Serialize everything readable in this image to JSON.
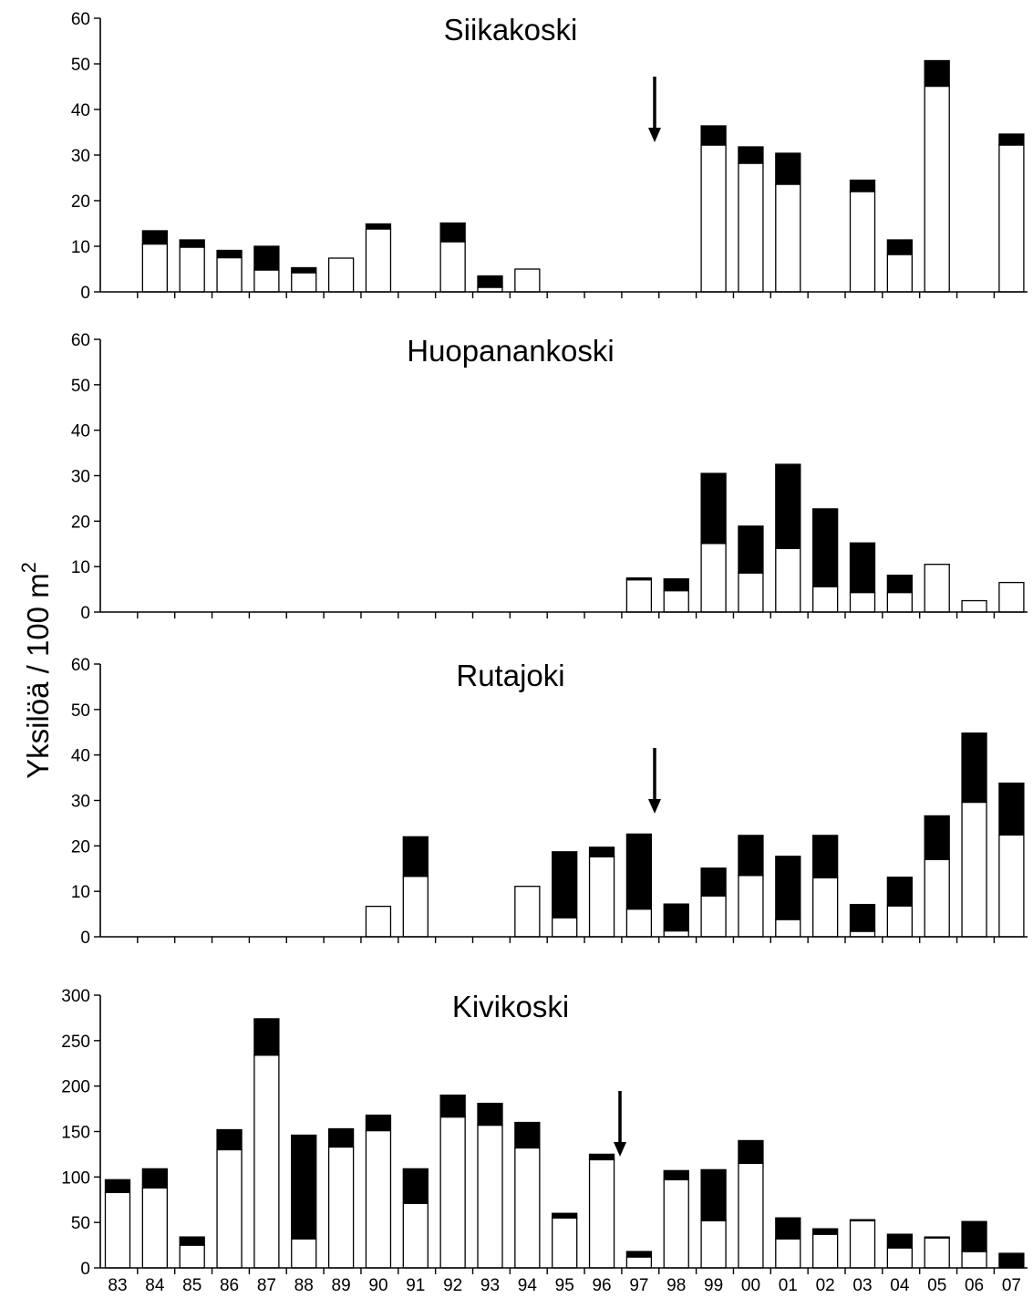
{
  "y_axis_title": "Yksilöä / 100 m",
  "y_axis_title_superscript": "2",
  "colors": {
    "lower_segment": "#ffffff",
    "upper_segment": "#000000",
    "axis": "#000000"
  },
  "chart_data": [
    {
      "type": "bar",
      "stacked": true,
      "title": "Siikakoski",
      "categories": [
        "83",
        "84",
        "85",
        "86",
        "87",
        "88",
        "89",
        "90",
        "91",
        "92",
        "93",
        "94",
        "95",
        "96",
        "97",
        "98",
        "99",
        "00",
        "01",
        "02",
        "03",
        "04",
        "05",
        "06",
        "07"
      ],
      "ylim": [
        0,
        60
      ],
      "yticks": [
        0,
        10,
        20,
        30,
        40,
        50,
        60
      ],
      "show_xtick_labels": false,
      "series": [
        {
          "values": [
            null,
            10.5,
            9.8,
            7.5,
            4.8,
            4.2,
            7.4,
            13.8,
            null,
            11,
            1,
            5,
            null,
            null,
            null,
            null,
            32.2,
            28.2,
            23.6,
            null,
            22,
            8.2,
            45.1,
            null,
            32.2
          ]
        },
        {
          "values": [
            null,
            2.9,
            1.6,
            1.6,
            5.2,
            1.1,
            0,
            1.1,
            null,
            4.1,
            2.5,
            0,
            null,
            null,
            null,
            null,
            4.2,
            3.6,
            6.8,
            null,
            2.5,
            3.2,
            5.6,
            null,
            2.4
          ]
        }
      ],
      "arrow_at": "98"
    },
    {
      "type": "bar",
      "stacked": true,
      "title": "Huopanankoski",
      "categories": [
        "83",
        "84",
        "85",
        "86",
        "87",
        "88",
        "89",
        "90",
        "91",
        "92",
        "93",
        "94",
        "95",
        "96",
        "97",
        "98",
        "99",
        "00",
        "01",
        "02",
        "03",
        "04",
        "05",
        "06",
        "07"
      ],
      "ylim": [
        0,
        60
      ],
      "yticks": [
        0,
        10,
        20,
        30,
        40,
        50,
        60
      ],
      "show_xtick_labels": false,
      "series": [
        {
          "values": [
            null,
            null,
            null,
            null,
            null,
            null,
            null,
            null,
            null,
            null,
            null,
            null,
            null,
            null,
            7.1,
            4.7,
            15.1,
            8.6,
            14,
            5.6,
            4.3,
            4.3,
            10.5,
            2.5,
            6.5
          ]
        },
        {
          "values": [
            null,
            null,
            null,
            null,
            null,
            null,
            null,
            null,
            null,
            null,
            null,
            null,
            null,
            null,
            0.4,
            2.6,
            15.4,
            10.3,
            18.5,
            17.1,
            10.9,
            3.8,
            0,
            0,
            0
          ]
        }
      ]
    },
    {
      "type": "bar",
      "stacked": true,
      "title": "Rutajoki",
      "categories": [
        "83",
        "84",
        "85",
        "86",
        "87",
        "88",
        "89",
        "90",
        "91",
        "92",
        "93",
        "94",
        "95",
        "96",
        "97",
        "98",
        "99",
        "00",
        "01",
        "02",
        "03",
        "04",
        "05",
        "06",
        "07"
      ],
      "ylim": [
        0,
        60
      ],
      "yticks": [
        0,
        10,
        20,
        30,
        40,
        50,
        60
      ],
      "show_xtick_labels": false,
      "series": [
        {
          "values": [
            null,
            null,
            null,
            null,
            null,
            null,
            null,
            6.7,
            13.3,
            null,
            null,
            11.1,
            4.2,
            17.6,
            6.1,
            1.3,
            9,
            13.5,
            3.8,
            13,
            1.2,
            6.8,
            17,
            29.6,
            22.4
          ]
        },
        {
          "values": [
            null,
            null,
            null,
            null,
            null,
            null,
            null,
            0,
            8.7,
            null,
            null,
            0,
            14.5,
            2.1,
            16.5,
            5.9,
            6.1,
            8.8,
            13.9,
            9.3,
            5.9,
            6.3,
            9.6,
            15.2,
            11.4
          ]
        }
      ],
      "arrow_at": "98"
    },
    {
      "type": "bar",
      "stacked": true,
      "title": "Kivikoski",
      "categories": [
        "83",
        "84",
        "85",
        "86",
        "87",
        "88",
        "89",
        "90",
        "91",
        "92",
        "93",
        "94",
        "95",
        "96",
        "97",
        "98",
        "99",
        "00",
        "01",
        "02",
        "03",
        "04",
        "05",
        "06",
        "07"
      ],
      "ylim": [
        0,
        300
      ],
      "yticks": [
        0,
        50,
        100,
        150,
        200,
        250,
        300
      ],
      "show_xtick_labels": true,
      "series": [
        {
          "values": [
            83,
            88,
            25,
            130,
            234,
            32,
            133,
            151,
            71,
            166,
            157,
            132,
            55,
            119,
            12,
            97,
            52,
            115,
            32,
            37,
            52,
            22,
            33,
            18,
            0
          ]
        },
        {
          "values": [
            14,
            21,
            9,
            22,
            40,
            114,
            20,
            17,
            38,
            24,
            24,
            28,
            5,
            6,
            6,
            10,
            56,
            25,
            23,
            6,
            1,
            15,
            1,
            33,
            16
          ]
        }
      ],
      "arrow_at": "97"
    }
  ]
}
